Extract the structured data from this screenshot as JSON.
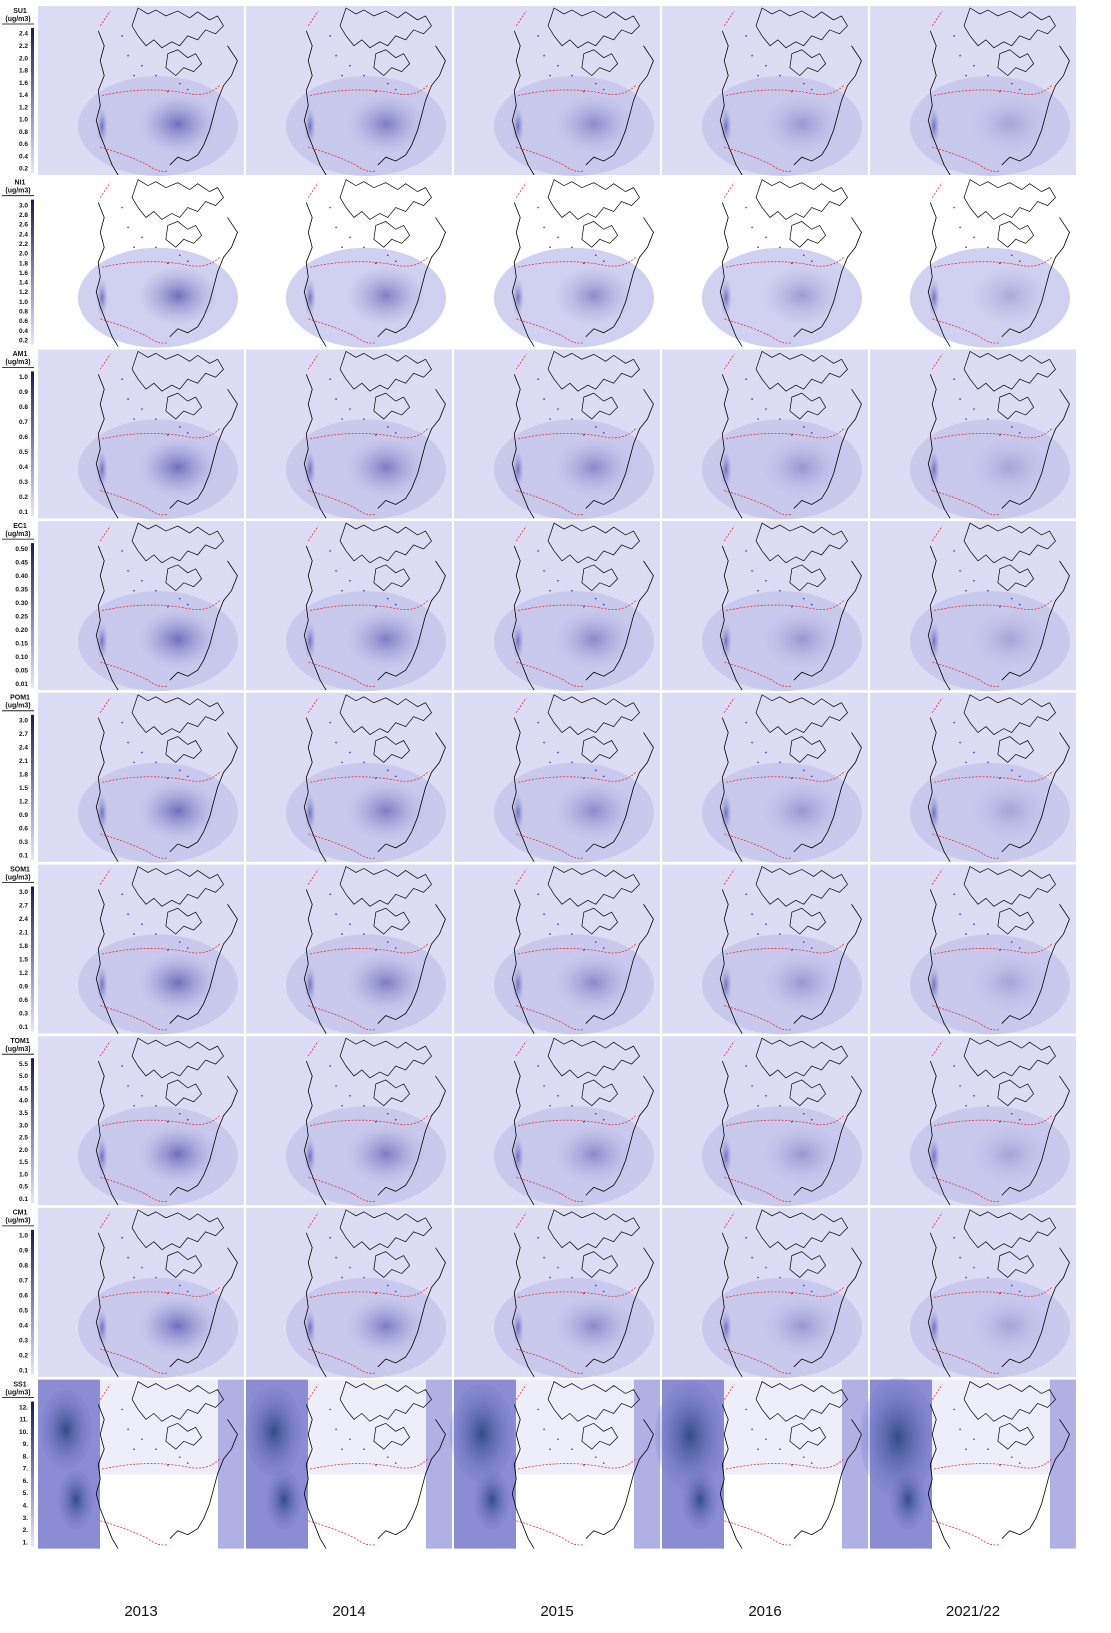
{
  "columns": [
    "2013",
    "2014",
    "2015",
    "2016",
    "2021/22"
  ],
  "rows": [
    {
      "label": "SU1",
      "unit": "(ug/m3)",
      "ticks": [
        "2.4",
        "2.2",
        "2.0",
        "1.8",
        "1.6",
        "1.4",
        "1.2",
        "1.0",
        "0.8",
        "0.6",
        "0.4",
        "0.2"
      ]
    },
    {
      "label": "NI1",
      "unit": "(ug/m3)",
      "ticks": [
        "3.0",
        "2.8",
        "2.6",
        "2.4",
        "2.2",
        "2.0",
        "1.8",
        "1.6",
        "1.4",
        "1.2",
        "1.0",
        "0.8",
        "0.6",
        "0.4",
        "0.2"
      ]
    },
    {
      "label": "AM1",
      "unit": "(ug/m3)",
      "ticks": [
        "1.0",
        "0.9",
        "0.8",
        "0.7",
        "0.6",
        "0.5",
        "0.4",
        "0.3",
        "0.2",
        "0.1"
      ]
    },
    {
      "label": "EC1",
      "unit": "(ug/m3)",
      "ticks": [
        "0.50",
        "0.45",
        "0.40",
        "0.35",
        "0.30",
        "0.25",
        "0.20",
        "0.15",
        "0.10",
        "0.05",
        "0.01"
      ]
    },
    {
      "label": "POM1",
      "unit": "(ug/m3)",
      "ticks": [
        "3.0",
        "2.7",
        "2.4",
        "2.1",
        "1.8",
        "1.5",
        "1.2",
        "0.9",
        "0.6",
        "0.3",
        "0.1"
      ]
    },
    {
      "label": "SOM1",
      "unit": "(ug/m3)",
      "ticks": [
        "3.0",
        "2.7",
        "2.4",
        "2.1",
        "1.8",
        "1.5",
        "1.2",
        "0.9",
        "0.6",
        "0.3",
        "0.1"
      ]
    },
    {
      "label": "TOM1",
      "unit": "(ug/m3)",
      "ticks": [
        "5.5",
        "5.0",
        "4.5",
        "4.0",
        "3.5",
        "3.0",
        "2.5",
        "2.0",
        "1.5",
        "1.0",
        "0.5",
        "0.1"
      ]
    },
    {
      "label": "CM1",
      "unit": "(ug/m3)",
      "ticks": [
        "1.0",
        "0.9",
        "0.8",
        "0.7",
        "0.6",
        "0.5",
        "0.4",
        "0.3",
        "0.2",
        "0.1"
      ]
    },
    {
      "label": "SS1",
      "unit": "(ug/m3)",
      "ticks": [
        "12.",
        "11.",
        "10.",
        "9.",
        "8.",
        "7.",
        "6.",
        "5.",
        "4.",
        "3.",
        "2.",
        "1."
      ]
    }
  ]
}
